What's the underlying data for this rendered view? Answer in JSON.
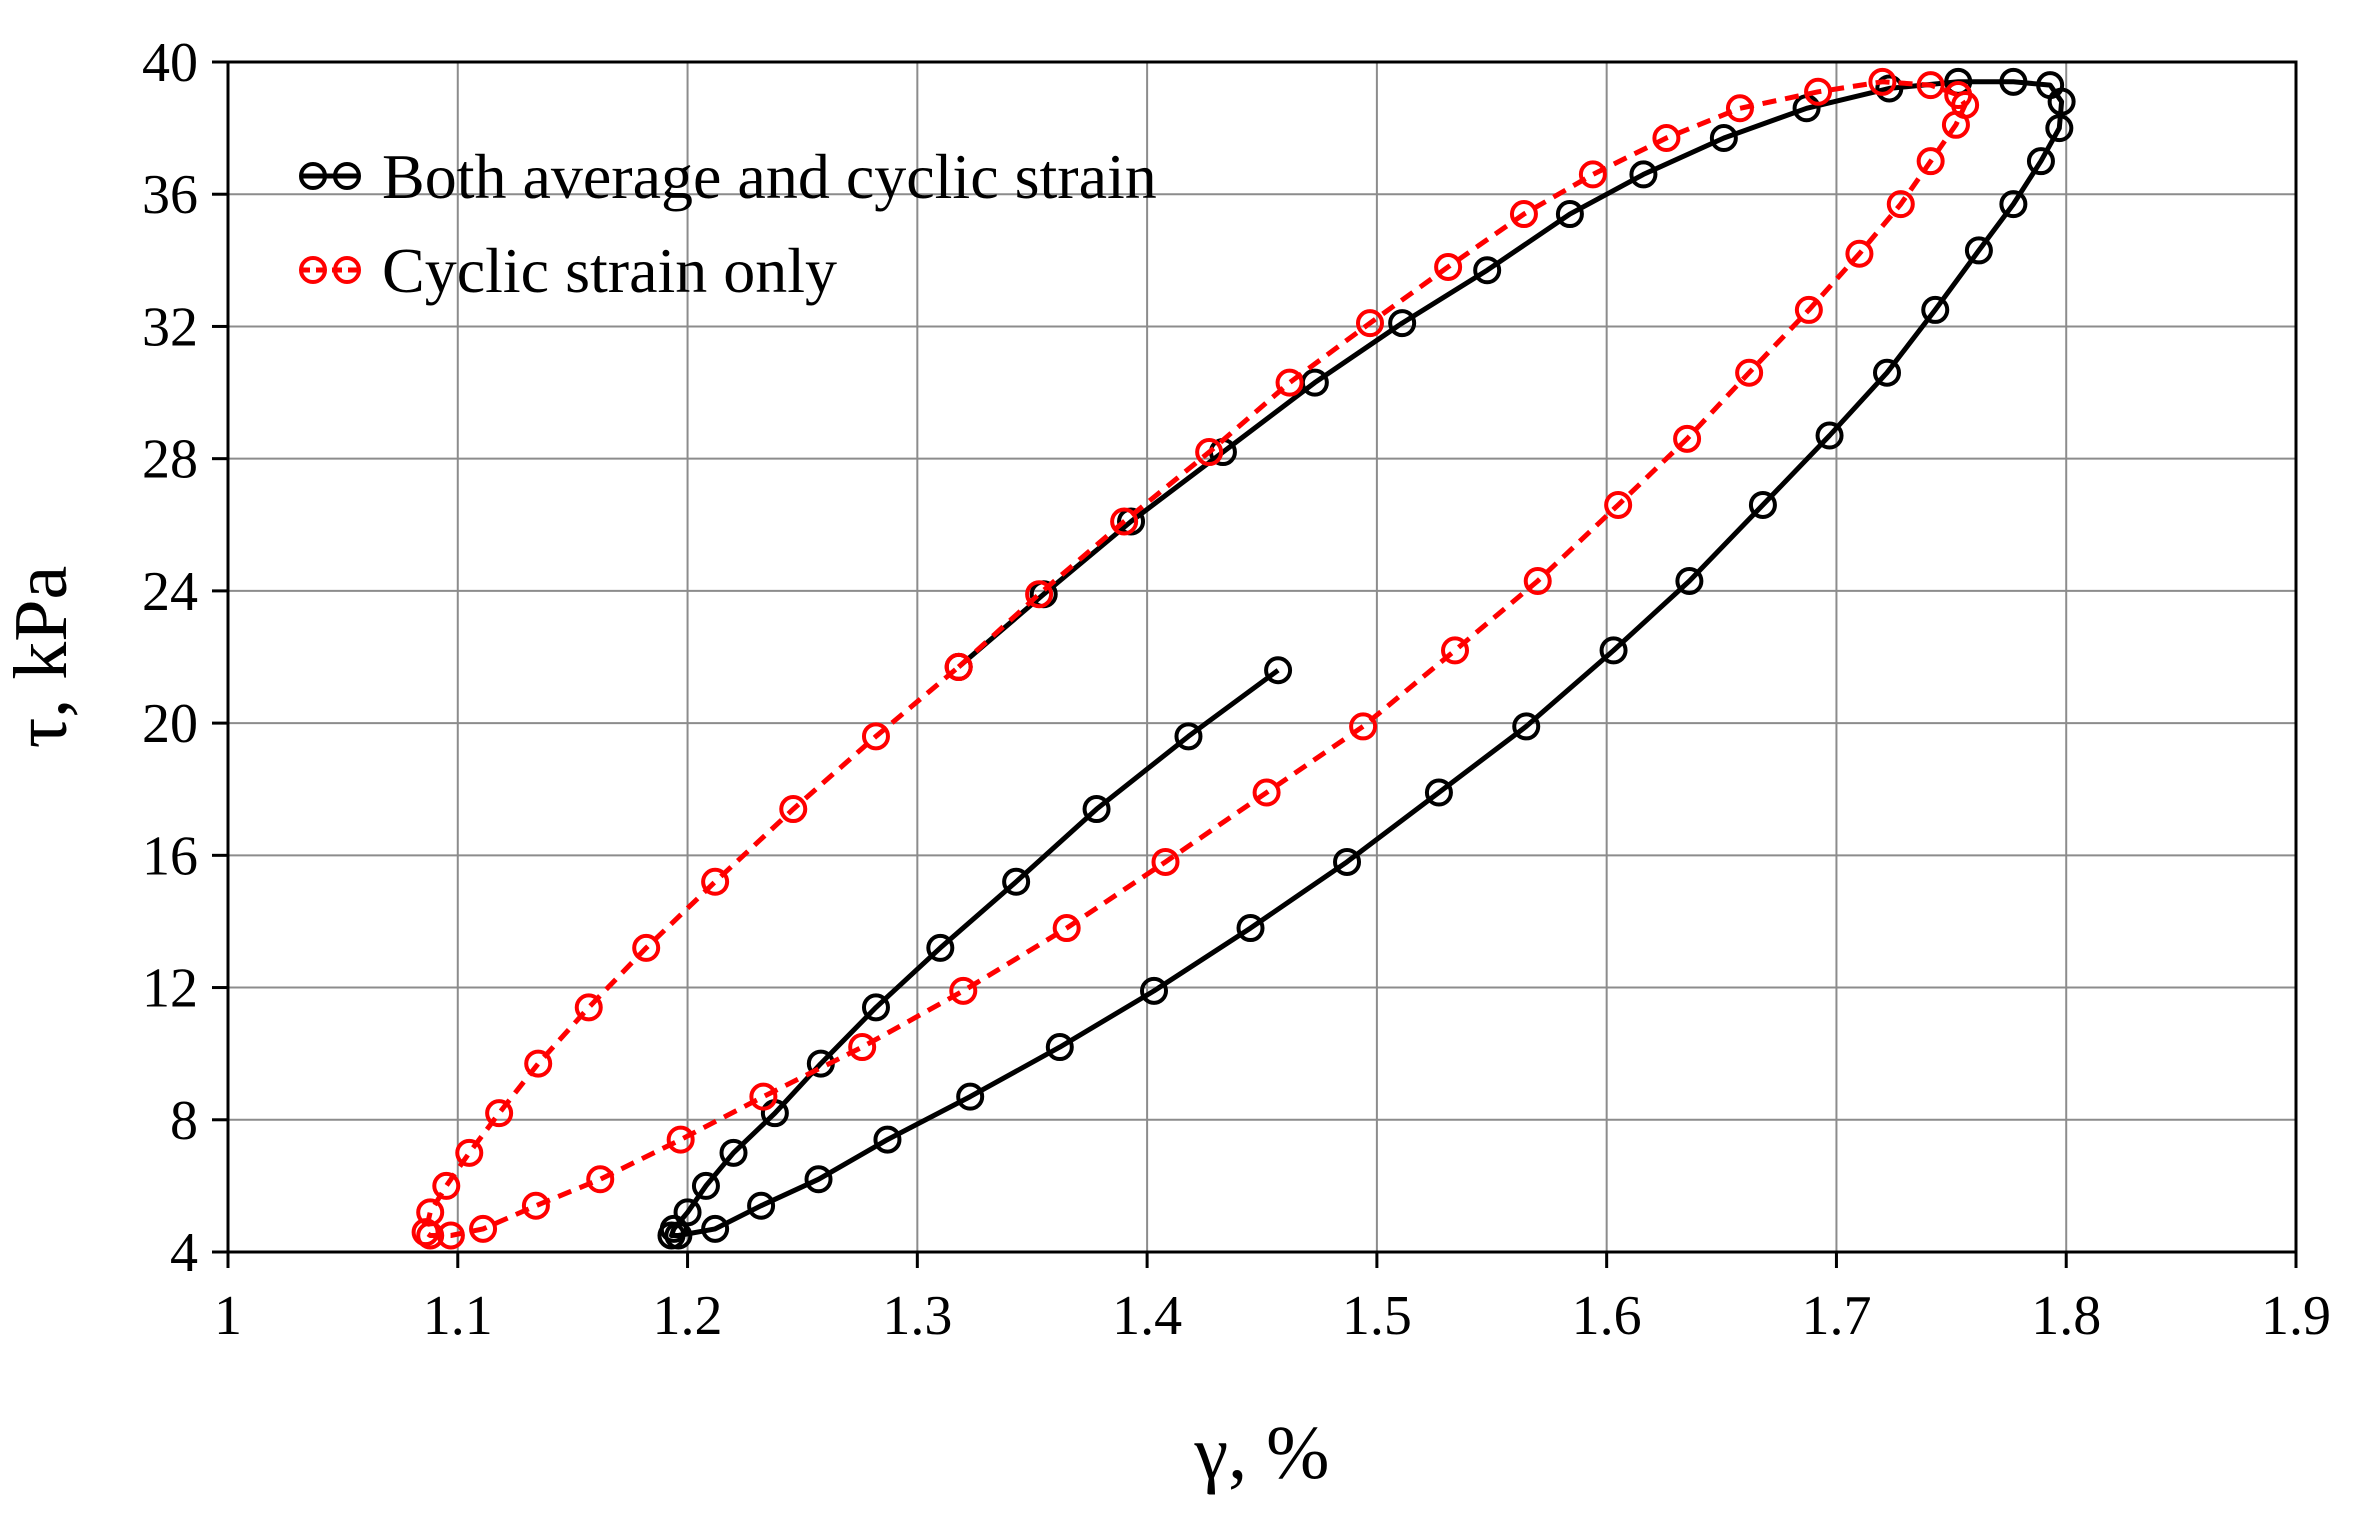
{
  "chart_data": {
    "type": "line",
    "title": "",
    "xlabel": "γ, %",
    "ylabel": "τ, kPa",
    "xlim": [
      1,
      1.9
    ],
    "ylim": [
      4,
      40
    ],
    "xticks": [
      1,
      1.1,
      1.2,
      1.3,
      1.4,
      1.5,
      1.6,
      1.7,
      1.8,
      1.9
    ],
    "xtick_labels": [
      "1",
      "1.1",
      "1.2",
      "1.3",
      "1.4",
      "1.5",
      "1.6",
      "1.7",
      "1.8",
      "1.9"
    ],
    "yticks": [
      4,
      8,
      12,
      16,
      20,
      24,
      28,
      32,
      36,
      40
    ],
    "ytick_labels": [
      "4",
      "8",
      "12",
      "16",
      "20",
      "24",
      "28",
      "32",
      "36",
      "40"
    ],
    "grid": true,
    "legend_position": "top-left",
    "series": [
      {
        "name": "Both average and cyclic strain",
        "color": "#000000",
        "line_style": "solid",
        "marker": "open-circle",
        "x": [
          1.457,
          1.418,
          1.378,
          1.343,
          1.31,
          1.282,
          1.258,
          1.238,
          1.22,
          1.208,
          1.2,
          1.194,
          1.193,
          1.196,
          1.212,
          1.232,
          1.257,
          1.287,
          1.323,
          1.362,
          1.403,
          1.445,
          1.487,
          1.527,
          1.565,
          1.603,
          1.636,
          1.668,
          1.697,
          1.722,
          1.743,
          1.762,
          1.777,
          1.789,
          1.797,
          1.798,
          1.793,
          1.777,
          1.753,
          1.723,
          1.687,
          1.651,
          1.616,
          1.584,
          1.548,
          1.511,
          1.473,
          1.433,
          1.393,
          1.355,
          1.318
        ],
        "y": [
          21.6,
          19.6,
          17.4,
          15.2,
          13.2,
          11.4,
          9.7,
          8.2,
          7.0,
          6.0,
          5.2,
          4.7,
          4.5,
          4.5,
          4.7,
          5.4,
          6.2,
          7.4,
          8.7,
          10.2,
          11.9,
          13.8,
          15.8,
          17.9,
          19.9,
          22.2,
          24.3,
          26.6,
          28.7,
          30.6,
          32.5,
          34.3,
          35.7,
          37.0,
          38.0,
          38.8,
          39.3,
          39.4,
          39.4,
          39.2,
          38.6,
          37.7,
          36.6,
          35.4,
          33.7,
          32.1,
          30.3,
          28.2,
          26.1,
          23.9,
          21.7
        ]
      },
      {
        "name": "Cyclic strain only",
        "color": "#ff0000",
        "line_style": "dashed",
        "marker": "open-circle",
        "x": [
          1.318,
          1.353,
          1.39,
          1.427,
          1.462,
          1.497,
          1.531,
          1.564,
          1.594,
          1.626,
          1.658,
          1.692,
          1.72,
          1.741,
          1.753,
          1.756,
          1.752,
          1.741,
          1.728,
          1.71,
          1.688,
          1.662,
          1.635,
          1.605,
          1.57,
          1.534,
          1.494,
          1.452,
          1.408,
          1.365,
          1.32,
          1.276,
          1.233,
          1.197,
          1.162,
          1.134,
          1.111,
          1.097,
          1.088,
          1.086,
          1.088,
          1.095,
          1.105,
          1.118,
          1.135,
          1.157,
          1.182,
          1.212,
          1.246,
          1.282,
          1.318
        ],
        "y": [
          21.7,
          23.9,
          26.1,
          28.2,
          30.3,
          32.1,
          33.8,
          35.4,
          36.6,
          37.7,
          38.6,
          39.1,
          39.4,
          39.3,
          39.0,
          38.7,
          38.1,
          37.0,
          35.7,
          34.2,
          32.5,
          30.6,
          28.6,
          26.6,
          24.3,
          22.2,
          19.9,
          17.9,
          15.8,
          13.8,
          11.9,
          10.2,
          8.7,
          7.4,
          6.2,
          5.4,
          4.7,
          4.5,
          4.5,
          4.6,
          5.2,
          6.0,
          7.0,
          8.2,
          9.7,
          11.4,
          13.2,
          15.2,
          17.4,
          19.6,
          21.7
        ]
      }
    ]
  }
}
